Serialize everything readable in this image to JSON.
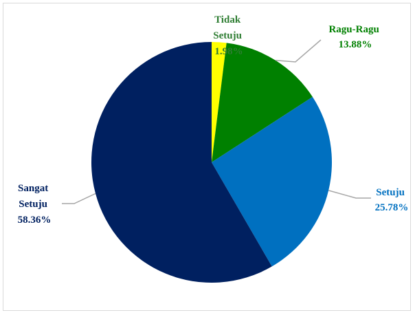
{
  "chart_data": {
    "type": "pie",
    "title": "",
    "start_angle_deg": 0,
    "direction": "clockwise",
    "slices": [
      {
        "label_lines": [
          "Tidak",
          "Setuju"
        ],
        "percent_text": "1.98%",
        "value": 1.98,
        "color": "#ffff00",
        "label_color": "#2e7d32"
      },
      {
        "label_lines": [
          "Ragu-Ragu"
        ],
        "percent_text": "13.88%",
        "value": 13.88,
        "color": "#008000",
        "label_color": "#008000"
      },
      {
        "label_lines": [
          "Setuju"
        ],
        "percent_text": "25.78%",
        "value": 25.78,
        "color": "#0070c0",
        "label_color": "#0070c0"
      },
      {
        "label_lines": [
          "Sangat",
          "Setuju"
        ],
        "percent_text": "58.36%",
        "value": 58.36,
        "color": "#002060",
        "label_color": "#002060"
      }
    ],
    "leader_line_color": "#a6a6a6",
    "legend": "none"
  }
}
